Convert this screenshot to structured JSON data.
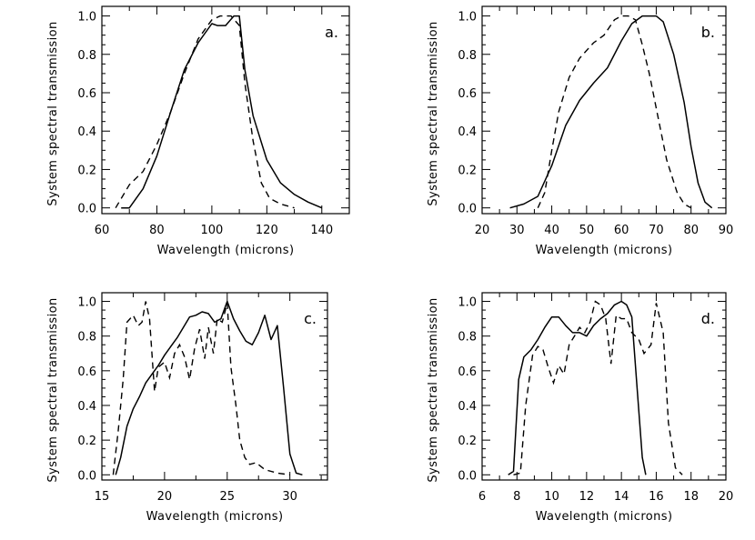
{
  "chart_data": [
    {
      "type": "line",
      "panel_label": "a.",
      "xlabel": "Wavelength (microns)",
      "ylabel": "System spectral transmission",
      "xlim": [
        60,
        150
      ],
      "ylim": [
        -0.03,
        1.05
      ],
      "xticks": [
        "60",
        "80",
        "100",
        "120",
        "140"
      ],
      "xtick_values": [
        60,
        80,
        100,
        120,
        140
      ],
      "yticks": [
        "0.0",
        "0.2",
        "0.4",
        "0.6",
        "0.8",
        "1.0"
      ],
      "ytick_values": [
        0,
        0.2,
        0.4,
        0.6,
        0.8,
        1.0
      ],
      "series": [
        {
          "name": "solid",
          "style": "solid",
          "x": [
            67,
            70,
            75,
            80,
            85,
            90,
            95,
            100,
            102,
            105,
            108,
            110,
            112,
            115,
            120,
            125,
            130,
            135,
            140
          ],
          "y": [
            0.0,
            0.0,
            0.1,
            0.27,
            0.5,
            0.72,
            0.86,
            0.96,
            0.95,
            0.95,
            1.0,
            1.0,
            0.72,
            0.48,
            0.25,
            0.13,
            0.07,
            0.03,
            0.0
          ]
        },
        {
          "name": "dashed",
          "style": "dashed",
          "x": [
            65,
            70,
            75,
            80,
            85,
            90,
            95,
            100,
            103,
            107,
            110,
            112,
            115,
            118,
            121,
            125,
            130
          ],
          "y": [
            0.0,
            0.12,
            0.19,
            0.33,
            0.5,
            0.7,
            0.88,
            0.98,
            1.0,
            1.0,
            0.95,
            0.65,
            0.35,
            0.13,
            0.05,
            0.02,
            0.0
          ]
        }
      ]
    },
    {
      "type": "line",
      "panel_label": "b.",
      "xlabel": "Wavelength (microns)",
      "ylabel": "System spectral transmission",
      "xlim": [
        20,
        90
      ],
      "ylim": [
        -0.03,
        1.05
      ],
      "xticks": [
        "20",
        "30",
        "40",
        "50",
        "60",
        "70",
        "80",
        "90"
      ],
      "xtick_values": [
        20,
        30,
        40,
        50,
        60,
        70,
        80,
        90
      ],
      "yticks": [
        "0.0",
        "0.2",
        "0.4",
        "0.6",
        "0.8",
        "1.0"
      ],
      "ytick_values": [
        0,
        0.2,
        0.4,
        0.6,
        0.8,
        1.0
      ],
      "series": [
        {
          "name": "solid",
          "style": "solid",
          "x": [
            28,
            32,
            36,
            40,
            44,
            48,
            52,
            56,
            60,
            63,
            66,
            70,
            72,
            75,
            78,
            80,
            82,
            84,
            86
          ],
          "y": [
            0.0,
            0.02,
            0.06,
            0.22,
            0.43,
            0.56,
            0.65,
            0.73,
            0.87,
            0.96,
            1.0,
            1.0,
            0.97,
            0.8,
            0.55,
            0.32,
            0.13,
            0.03,
            0.0
          ]
        },
        {
          "name": "dashed",
          "style": "dashed",
          "x": [
            36,
            38,
            40,
            42,
            45,
            48,
            52,
            55,
            58,
            60,
            62,
            64,
            66,
            68,
            70,
            73,
            76,
            78,
            80
          ],
          "y": [
            0.0,
            0.08,
            0.3,
            0.5,
            0.68,
            0.78,
            0.86,
            0.9,
            0.98,
            1.0,
            1.0,
            0.98,
            0.85,
            0.7,
            0.52,
            0.25,
            0.08,
            0.02,
            0.0
          ]
        }
      ]
    },
    {
      "type": "line",
      "panel_label": "c.",
      "xlabel": "Wavelength (microns)",
      "ylabel": "System spectral transmission",
      "xlim": [
        15,
        33
      ],
      "ylim": [
        -0.03,
        1.05
      ],
      "xticks": [
        "15",
        "20",
        "25",
        "30"
      ],
      "xtick_values": [
        15,
        20,
        25,
        30
      ],
      "yticks": [
        "0.0",
        "0.2",
        "0.4",
        "0.6",
        "0.8",
        "1.0"
      ],
      "ytick_values": [
        0,
        0.2,
        0.4,
        0.6,
        0.8,
        1.0
      ],
      "series": [
        {
          "name": "solid",
          "style": "solid",
          "x": [
            16.1,
            16.5,
            17,
            17.5,
            18,
            18.5,
            19,
            19.5,
            20,
            20.5,
            21,
            21.5,
            22,
            22.5,
            23,
            23.5,
            24,
            24.5,
            25,
            25.5,
            26,
            26.5,
            27,
            27.5,
            28,
            28.5,
            29,
            29.5,
            30,
            30.5,
            31
          ],
          "y": [
            0.0,
            0.1,
            0.28,
            0.38,
            0.45,
            0.53,
            0.58,
            0.63,
            0.69,
            0.74,
            0.79,
            0.85,
            0.91,
            0.92,
            0.94,
            0.93,
            0.88,
            0.9,
            1.0,
            0.9,
            0.83,
            0.77,
            0.75,
            0.82,
            0.92,
            0.78,
            0.86,
            0.5,
            0.12,
            0.01,
            0.0
          ]
        },
        {
          "name": "dashed",
          "style": "dashed",
          "x": [
            15.9,
            16.3,
            16.7,
            17,
            17.5,
            17.9,
            18.2,
            18.5,
            18.8,
            19.2,
            19.5,
            20,
            20.4,
            20.8,
            21.2,
            21.6,
            22,
            22.4,
            22.8,
            23.2,
            23.5,
            23.9,
            24.2,
            24.6,
            25,
            25.3,
            25.7,
            26,
            26.4,
            26.8,
            27.3,
            28,
            29,
            30
          ],
          "y": [
            0.0,
            0.25,
            0.55,
            0.88,
            0.92,
            0.86,
            0.88,
            1.0,
            0.9,
            0.48,
            0.62,
            0.65,
            0.56,
            0.7,
            0.75,
            0.68,
            0.55,
            0.73,
            0.84,
            0.67,
            0.85,
            0.7,
            0.9,
            0.88,
            0.99,
            0.62,
            0.4,
            0.2,
            0.1,
            0.06,
            0.07,
            0.03,
            0.01,
            0.0
          ]
        }
      ]
    },
    {
      "type": "line",
      "panel_label": "d.",
      "xlabel": "Wavelength (microns)",
      "ylabel": "System spectral transmission",
      "xlim": [
        6,
        20
      ],
      "ylim": [
        -0.03,
        1.05
      ],
      "xticks": [
        "6",
        "8",
        "10",
        "12",
        "14",
        "16",
        "18",
        "20"
      ],
      "xtick_values": [
        6,
        8,
        10,
        12,
        14,
        16,
        18,
        20
      ],
      "yticks": [
        "0.0",
        "0.2",
        "0.4",
        "0.6",
        "0.8",
        "1.0"
      ],
      "ytick_values": [
        0,
        0.2,
        0.4,
        0.6,
        0.8,
        1.0
      ],
      "series": [
        {
          "name": "solid",
          "style": "solid",
          "x": [
            7.5,
            7.8,
            8.1,
            8.4,
            8.8,
            9.2,
            9.6,
            10,
            10.4,
            10.8,
            11.2,
            11.6,
            12,
            12.4,
            12.8,
            13.2,
            13.6,
            14,
            14.3,
            14.6,
            14.9,
            15.2,
            15.4
          ],
          "y": [
            0.0,
            0.02,
            0.55,
            0.68,
            0.72,
            0.78,
            0.85,
            0.91,
            0.91,
            0.86,
            0.82,
            0.82,
            0.8,
            0.86,
            0.9,
            0.93,
            0.98,
            1.0,
            0.98,
            0.91,
            0.5,
            0.1,
            0.0
          ]
        },
        {
          "name": "dashed",
          "style": "dashed",
          "x": [
            7.8,
            8.2,
            8.5,
            8.9,
            9.2,
            9.5,
            9.8,
            10.1,
            10.4,
            10.7,
            11,
            11.3,
            11.6,
            11.9,
            12.2,
            12.5,
            12.8,
            13.1,
            13.4,
            13.7,
            14,
            14.3,
            14.6,
            15,
            15.3,
            15.7,
            16,
            16.4,
            16.7,
            17.1,
            17.5
          ],
          "y": [
            0.0,
            0.01,
            0.4,
            0.69,
            0.74,
            0.72,
            0.62,
            0.53,
            0.63,
            0.58,
            0.75,
            0.8,
            0.85,
            0.82,
            0.88,
            1.0,
            0.98,
            0.9,
            0.64,
            0.92,
            0.9,
            0.9,
            0.82,
            0.78,
            0.7,
            0.75,
            0.99,
            0.82,
            0.3,
            0.04,
            0.0
          ]
        }
      ]
    }
  ]
}
